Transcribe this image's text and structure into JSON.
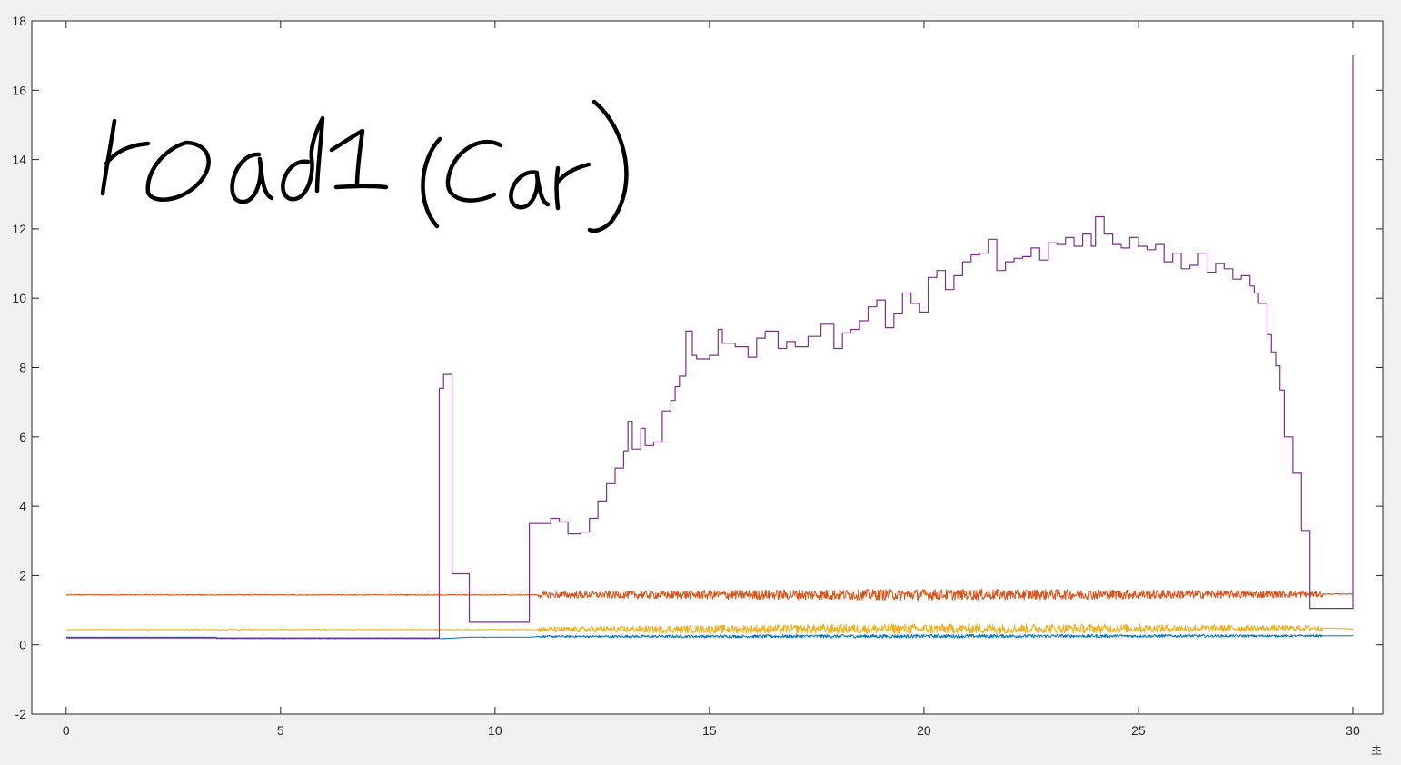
{
  "chart_data": {
    "type": "line",
    "annotation": "road1 (car)",
    "x_unit_label": "초",
    "xlim": [
      -0.8,
      30.7
    ],
    "ylim": [
      -2,
      18
    ],
    "x_ticks": [
      0,
      5,
      10,
      15,
      20,
      25,
      30
    ],
    "y_ticks": [
      -2,
      0,
      2,
      4,
      6,
      8,
      10,
      12,
      14,
      16,
      18
    ],
    "grid": false,
    "series": [
      {
        "color": "#0072BD",
        "noise_amplitude": 0.05,
        "points": [
          [
            0,
            0.22
          ],
          [
            3.5,
            0.22
          ],
          [
            3.5,
            0.18
          ],
          [
            8.8,
            0.18
          ],
          [
            9.4,
            0.22
          ],
          [
            10.8,
            0.22
          ],
          [
            11.0,
            0.24
          ],
          [
            30,
            0.26
          ]
        ]
      },
      {
        "color": "#D95319",
        "noise_amplitude": 0.16,
        "points": [
          [
            0,
            1.44
          ],
          [
            11.0,
            1.44
          ],
          [
            29.3,
            1.46
          ],
          [
            30,
            1.47
          ]
        ]
      },
      {
        "color": "#EDB120",
        "noise_amplitude": 0.14,
        "points": [
          [
            0,
            0.44
          ],
          [
            11.0,
            0.44
          ],
          [
            29.5,
            0.48
          ],
          [
            30,
            0.46
          ]
        ]
      },
      {
        "color": "#7E2F8E",
        "step": true,
        "points": [
          [
            0,
            0.2
          ],
          [
            8.7,
            0.2
          ],
          [
            8.7,
            7.4
          ],
          [
            8.8,
            7.8
          ],
          [
            8.9,
            7.8
          ],
          [
            9.0,
            2.05
          ],
          [
            9.4,
            2.05
          ],
          [
            9.4,
            0.65
          ],
          [
            10.8,
            0.65
          ],
          [
            10.8,
            3.5
          ],
          [
            11.1,
            3.5
          ],
          [
            11.3,
            3.65
          ],
          [
            11.5,
            3.55
          ],
          [
            11.7,
            3.2
          ],
          [
            12.0,
            3.25
          ],
          [
            12.2,
            3.65
          ],
          [
            12.4,
            4.15
          ],
          [
            12.6,
            4.65
          ],
          [
            12.8,
            5.1
          ],
          [
            13.0,
            5.6
          ],
          [
            13.1,
            6.45
          ],
          [
            13.2,
            5.65
          ],
          [
            13.4,
            6.25
          ],
          [
            13.5,
            5.75
          ],
          [
            13.7,
            5.85
          ],
          [
            13.9,
            6.75
          ],
          [
            14.1,
            7.05
          ],
          [
            14.2,
            7.45
          ],
          [
            14.3,
            7.75
          ],
          [
            14.45,
            9.05
          ],
          [
            14.6,
            8.35
          ],
          [
            14.7,
            8.25
          ],
          [
            15.0,
            8.35
          ],
          [
            15.2,
            9.1
          ],
          [
            15.3,
            8.7
          ],
          [
            15.6,
            8.6
          ],
          [
            15.9,
            8.3
          ],
          [
            16.1,
            8.85
          ],
          [
            16.3,
            9.05
          ],
          [
            16.6,
            8.55
          ],
          [
            16.8,
            8.75
          ],
          [
            17.0,
            8.6
          ],
          [
            17.3,
            8.9
          ],
          [
            17.6,
            9.25
          ],
          [
            17.9,
            8.55
          ],
          [
            18.1,
            9.0
          ],
          [
            18.3,
            9.1
          ],
          [
            18.5,
            9.35
          ],
          [
            18.7,
            9.75
          ],
          [
            18.9,
            9.95
          ],
          [
            19.1,
            9.15
          ],
          [
            19.3,
            9.55
          ],
          [
            19.5,
            10.15
          ],
          [
            19.7,
            9.85
          ],
          [
            19.9,
            9.6
          ],
          [
            20.1,
            10.6
          ],
          [
            20.3,
            10.8
          ],
          [
            20.5,
            10.25
          ],
          [
            20.7,
            10.65
          ],
          [
            20.9,
            11.05
          ],
          [
            21.1,
            11.25
          ],
          [
            21.3,
            11.3
          ],
          [
            21.5,
            11.7
          ],
          [
            21.7,
            10.8
          ],
          [
            21.9,
            11.05
          ],
          [
            22.1,
            11.15
          ],
          [
            22.3,
            11.2
          ],
          [
            22.5,
            11.45
          ],
          [
            22.7,
            11.1
          ],
          [
            22.9,
            11.6
          ],
          [
            23.1,
            11.55
          ],
          [
            23.3,
            11.75
          ],
          [
            23.5,
            11.5
          ],
          [
            23.7,
            11.85
          ],
          [
            23.9,
            11.5
          ],
          [
            24.0,
            12.35
          ],
          [
            24.2,
            11.85
          ],
          [
            24.4,
            11.55
          ],
          [
            24.6,
            11.45
          ],
          [
            24.8,
            11.75
          ],
          [
            25.0,
            11.5
          ],
          [
            25.2,
            11.4
          ],
          [
            25.4,
            11.55
          ],
          [
            25.6,
            11.05
          ],
          [
            25.8,
            11.3
          ],
          [
            26.0,
            10.85
          ],
          [
            26.2,
            10.95
          ],
          [
            26.4,
            11.3
          ],
          [
            26.6,
            10.75
          ],
          [
            26.8,
            11.0
          ],
          [
            27.0,
            10.85
          ],
          [
            27.2,
            10.55
          ],
          [
            27.4,
            10.65
          ],
          [
            27.6,
            10.35
          ],
          [
            27.7,
            10.15
          ],
          [
            27.8,
            9.85
          ],
          [
            28.0,
            8.95
          ],
          [
            28.1,
            8.45
          ],
          [
            28.2,
            8.05
          ],
          [
            28.3,
            7.35
          ],
          [
            28.4,
            6.0
          ],
          [
            28.6,
            4.95
          ],
          [
            28.8,
            3.3
          ],
          [
            29.0,
            3.3
          ],
          [
            29.0,
            1.05
          ],
          [
            29.3,
            1.05
          ],
          [
            30.0,
            1.05
          ],
          [
            30.0,
            17.0
          ]
        ]
      }
    ]
  }
}
